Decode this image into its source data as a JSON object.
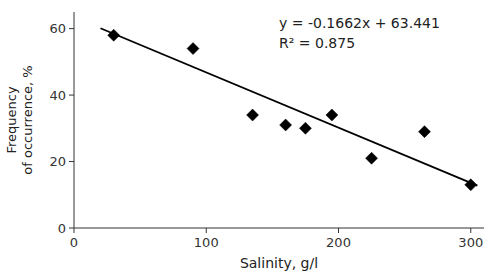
{
  "chart_data": {
    "type": "scatter",
    "x_label": "Salinity, g/l",
    "y_label": "Frequency\nof occurrence, %",
    "annotations": [
      "y = -0.1662x + 63.441",
      "R² = 0.875"
    ],
    "series": [
      {
        "type": "scatter",
        "x": [
          30,
          90,
          135,
          160,
          175,
          195,
          225,
          265,
          300
        ],
        "values": [
          58,
          54,
          34,
          31,
          30,
          34,
          21,
          29,
          13
        ],
        "color": "black",
        "marker": "diamond"
      },
      {
        "type": "line",
        "x": [
          20,
          305
        ],
        "values": [
          60.117,
          12.75
        ],
        "color": "black"
      }
    ],
    "xlim": [
      0,
      310
    ],
    "ylim": [
      0,
      65
    ],
    "xticks": [
      0,
      100,
      200,
      300
    ],
    "yticks": [
      0,
      20,
      40,
      60
    ],
    "grid": false
  }
}
